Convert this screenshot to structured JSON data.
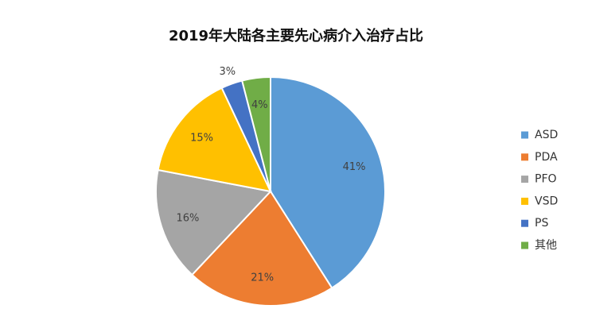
{
  "chart_data": {
    "type": "pie",
    "title": "2019年大陆各主要先心病介入治疗占比",
    "categories": [
      "ASD",
      "PDA",
      "PFO",
      "VSD",
      "PS",
      "其他"
    ],
    "values": [
      41,
      21,
      16,
      15,
      3,
      4
    ],
    "value_labels": [
      "41%",
      "21%",
      "16%",
      "15%",
      "3%",
      "4%"
    ],
    "colors": [
      "#5b9bd5",
      "#ed7d31",
      "#a5a5a5",
      "#ffc000",
      "#4472c4",
      "#70ad47"
    ],
    "legend": "right"
  }
}
